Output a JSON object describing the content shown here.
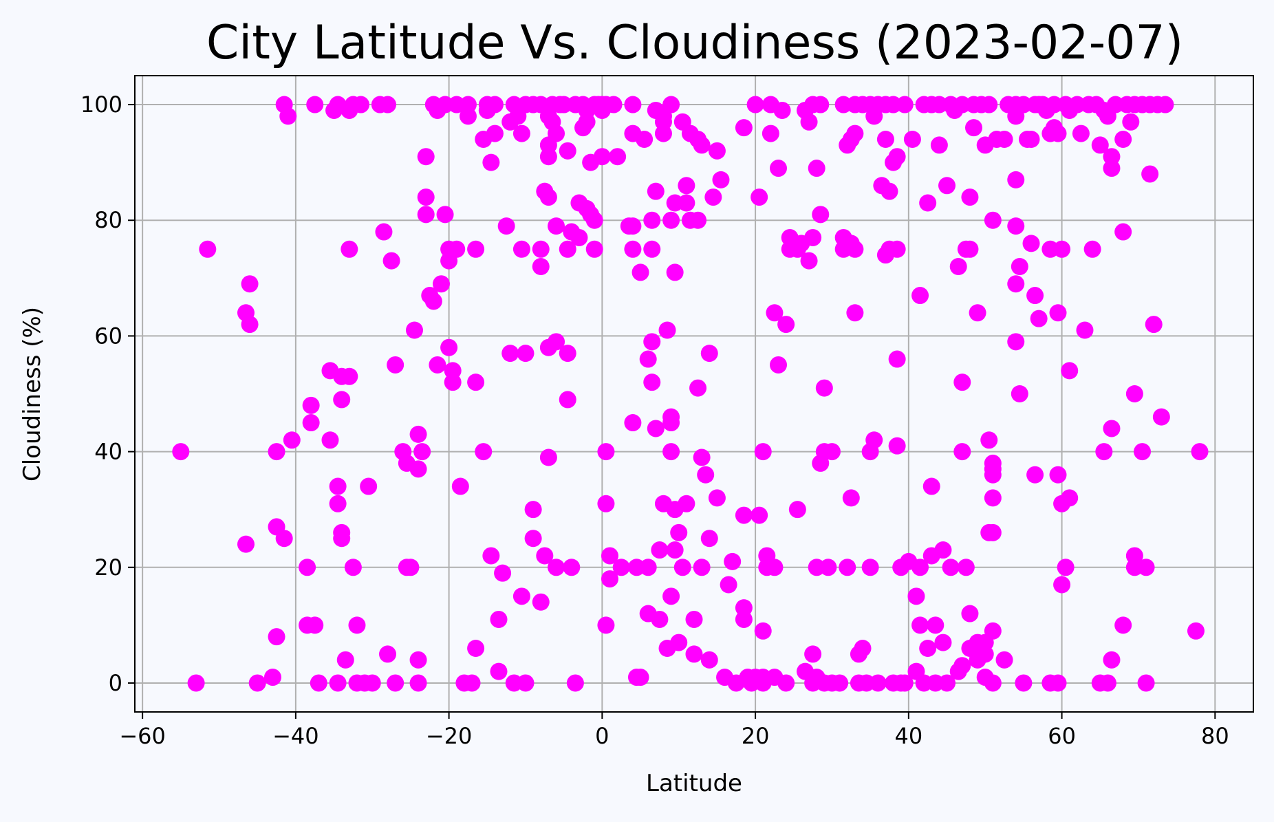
{
  "chart_data": {
    "type": "scatter",
    "title": "City Latitude Vs. Cloudiness (2023-02-07)",
    "xlabel": "Latitude",
    "ylabel": "Cloudiness (%)",
    "xlim": [
      -61,
      85
    ],
    "ylim": [
      -5,
      105
    ],
    "xticks": [
      -60,
      -40,
      -20,
      0,
      20,
      40,
      60,
      80
    ],
    "yticks": [
      0,
      20,
      40,
      60,
      80,
      100
    ],
    "grid": true,
    "marker_color": "#ff00ff",
    "points": [
      [
        -55,
        40
      ],
      [
        -53,
        0
      ],
      [
        -51.5,
        75
      ],
      [
        -46.5,
        64
      ],
      [
        -46,
        62
      ],
      [
        -46,
        69
      ],
      [
        -46.5,
        24
      ],
      [
        -45,
        0
      ],
      [
        -43,
        1
      ],
      [
        -42.5,
        40
      ],
      [
        -42.5,
        8
      ],
      [
        -42.5,
        27
      ],
      [
        -41.5,
        100
      ],
      [
        -41,
        98
      ],
      [
        -41.5,
        25
      ],
      [
        -40.5,
        42
      ],
      [
        -38.5,
        20
      ],
      [
        -38.5,
        10
      ],
      [
        -38,
        48
      ],
      [
        -38,
        45
      ],
      [
        -37.5,
        100
      ],
      [
        -37.5,
        10
      ],
      [
        -37,
        0
      ],
      [
        -35.5,
        54
      ],
      [
        -35.5,
        42
      ],
      [
        -35,
        99
      ],
      [
        -34.5,
        100
      ],
      [
        -34.5,
        0
      ],
      [
        -34.5,
        34
      ],
      [
        -34.5,
        31
      ],
      [
        -34,
        53
      ],
      [
        -34,
        49
      ],
      [
        -34,
        26
      ],
      [
        -34,
        25
      ],
      [
        -33.5,
        4
      ],
      [
        -33,
        53
      ],
      [
        -33,
        75
      ],
      [
        -33,
        99
      ],
      [
        -32.5,
        100
      ],
      [
        -32.5,
        20
      ],
      [
        -32,
        10
      ],
      [
        -32,
        0
      ],
      [
        -31.5,
        100
      ],
      [
        -31,
        0
      ],
      [
        -30,
        0
      ],
      [
        -30.5,
        34
      ],
      [
        -29,
        100
      ],
      [
        -28.5,
        78
      ],
      [
        -28,
        5
      ],
      [
        -28,
        100
      ],
      [
        -27.5,
        73
      ],
      [
        -27,
        55
      ],
      [
        -27,
        0
      ],
      [
        -26,
        40
      ],
      [
        -25.5,
        38
      ],
      [
        -25.5,
        20
      ],
      [
        -25,
        20
      ],
      [
        -24.5,
        61
      ],
      [
        -24,
        43
      ],
      [
        -24,
        37
      ],
      [
        -24,
        0
      ],
      [
        -24,
        4
      ],
      [
        -23.5,
        40
      ],
      [
        -23,
        91
      ],
      [
        -23,
        84
      ],
      [
        -23,
        81
      ],
      [
        -22.5,
        67
      ],
      [
        -22,
        66
      ],
      [
        -22,
        100
      ],
      [
        -21.5,
        99
      ],
      [
        -21.5,
        55
      ],
      [
        -21,
        69
      ],
      [
        -20.5,
        100
      ],
      [
        -20.5,
        81
      ],
      [
        -20,
        73
      ],
      [
        -20,
        75
      ],
      [
        -20,
        58
      ],
      [
        -19.5,
        54
      ],
      [
        -19.5,
        52
      ],
      [
        -19,
        100
      ],
      [
        -19,
        75
      ],
      [
        -18.5,
        34
      ],
      [
        -18,
        0
      ],
      [
        -17.5,
        100
      ],
      [
        -17.5,
        98
      ],
      [
        -17,
        0
      ],
      [
        -16.5,
        75
      ],
      [
        -16.5,
        52
      ],
      [
        -16.5,
        6
      ],
      [
        -15.5,
        40
      ],
      [
        -15.5,
        94
      ],
      [
        -15,
        100
      ],
      [
        -15,
        99
      ],
      [
        -14.5,
        90
      ],
      [
        -14.5,
        22
      ],
      [
        -14,
        100
      ],
      [
        -14,
        95
      ],
      [
        -13.5,
        11
      ],
      [
        -13.5,
        2
      ],
      [
        -13,
        19
      ],
      [
        -12.5,
        79
      ],
      [
        -12,
        97
      ],
      [
        -12,
        57
      ],
      [
        -11.5,
        0
      ],
      [
        -11.5,
        100
      ],
      [
        -11,
        98
      ],
      [
        -10.5,
        95
      ],
      [
        -10.5,
        75
      ],
      [
        -10.5,
        15
      ],
      [
        -10,
        57
      ],
      [
        -10,
        0
      ],
      [
        -10,
        100
      ],
      [
        -9,
        100
      ],
      [
        -9,
        25
      ],
      [
        -9,
        30
      ],
      [
        -8,
        100
      ],
      [
        -8,
        75
      ],
      [
        -8,
        72
      ],
      [
        -8,
        14
      ],
      [
        -7.5,
        22
      ],
      [
        -7.5,
        85
      ],
      [
        -7,
        98
      ],
      [
        -7,
        93
      ],
      [
        -7,
        91
      ],
      [
        -7,
        84
      ],
      [
        -7,
        58
      ],
      [
        -7,
        39
      ],
      [
        -6.5,
        100
      ],
      [
        -6.5,
        97
      ],
      [
        -6,
        95
      ],
      [
        -6,
        79
      ],
      [
        -6,
        59
      ],
      [
        -6,
        20
      ],
      [
        -5.5,
        100
      ],
      [
        -5,
        100
      ],
      [
        -4.5,
        92
      ],
      [
        -4.5,
        75
      ],
      [
        -4.5,
        57
      ],
      [
        -4.5,
        49
      ],
      [
        -4,
        78
      ],
      [
        -4,
        20
      ],
      [
        -3.5,
        100
      ],
      [
        -3.5,
        0
      ],
      [
        -3,
        83
      ],
      [
        -3,
        77
      ],
      [
        -2.5,
        100
      ],
      [
        -2.5,
        96
      ],
      [
        -2,
        99
      ],
      [
        -2,
        97
      ],
      [
        -2,
        82
      ],
      [
        -1.5,
        90
      ],
      [
        -1.5,
        81
      ],
      [
        -1,
        100
      ],
      [
        -1,
        75
      ],
      [
        -1,
        80
      ],
      [
        -0.5,
        100
      ],
      [
        0,
        100
      ],
      [
        0,
        99
      ],
      [
        0,
        91
      ],
      [
        0.5,
        100
      ],
      [
        0.5,
        10
      ],
      [
        0.5,
        40
      ],
      [
        0.5,
        31
      ],
      [
        1,
        22
      ],
      [
        1,
        18
      ],
      [
        1.5,
        100
      ],
      [
        2,
        91
      ],
      [
        2.5,
        20
      ],
      [
        3.5,
        79
      ],
      [
        4,
        79
      ],
      [
        4,
        75
      ],
      [
        4,
        45
      ],
      [
        4,
        95
      ],
      [
        4,
        100
      ],
      [
        4.5,
        20
      ],
      [
        4.5,
        1
      ],
      [
        5,
        1
      ],
      [
        5,
        71
      ],
      [
        5.5,
        94
      ],
      [
        6,
        20
      ],
      [
        6,
        12
      ],
      [
        6,
        56
      ],
      [
        6.5,
        59
      ],
      [
        6.5,
        52
      ],
      [
        6.5,
        75
      ],
      [
        6.5,
        80
      ],
      [
        7,
        85
      ],
      [
        7,
        44
      ],
      [
        7,
        99
      ],
      [
        7.5,
        23
      ],
      [
        7.5,
        11
      ],
      [
        8,
        31
      ],
      [
        8,
        97
      ],
      [
        8,
        95
      ],
      [
        8,
        98
      ],
      [
        8.5,
        6
      ],
      [
        8.5,
        61
      ],
      [
        9,
        15
      ],
      [
        9,
        40
      ],
      [
        9,
        45
      ],
      [
        9,
        46
      ],
      [
        9,
        80
      ],
      [
        9,
        100
      ],
      [
        9.5,
        71
      ],
      [
        9.5,
        83
      ],
      [
        9.5,
        30
      ],
      [
        9.5,
        23
      ],
      [
        10,
        7
      ],
      [
        10,
        26
      ],
      [
        10.5,
        97
      ],
      [
        10.5,
        20
      ],
      [
        11,
        31
      ],
      [
        11,
        86
      ],
      [
        11,
        83
      ],
      [
        11.5,
        95
      ],
      [
        11.5,
        80
      ],
      [
        12,
        5
      ],
      [
        12,
        11
      ],
      [
        12.5,
        94
      ],
      [
        12.5,
        80
      ],
      [
        12.5,
        51
      ],
      [
        13,
        93
      ],
      [
        13,
        39
      ],
      [
        13,
        20
      ],
      [
        13.5,
        36
      ],
      [
        14,
        57
      ],
      [
        14,
        25
      ],
      [
        14,
        4
      ],
      [
        14.5,
        84
      ],
      [
        15,
        92
      ],
      [
        15,
        32
      ],
      [
        15.5,
        87
      ],
      [
        16,
        1
      ],
      [
        16.5,
        17
      ],
      [
        17,
        21
      ],
      [
        17.5,
        0
      ],
      [
        18.5,
        29
      ],
      [
        18.5,
        13
      ],
      [
        18.5,
        11
      ],
      [
        18.5,
        96
      ],
      [
        19,
        1
      ],
      [
        19.5,
        0
      ],
      [
        20,
        1
      ],
      [
        20,
        100
      ],
      [
        20.5,
        84
      ],
      [
        20.5,
        29
      ],
      [
        21,
        40
      ],
      [
        21,
        9
      ],
      [
        21,
        1
      ],
      [
        21,
        0
      ],
      [
        21.5,
        22
      ],
      [
        21.5,
        20
      ],
      [
        22,
        100
      ],
      [
        22,
        95
      ],
      [
        22.5,
        64
      ],
      [
        22.5,
        20
      ],
      [
        22.5,
        1
      ],
      [
        23,
        89
      ],
      [
        23,
        55
      ],
      [
        23.5,
        99
      ],
      [
        24,
        62
      ],
      [
        24,
        0
      ],
      [
        24.5,
        75
      ],
      [
        24.5,
        77
      ],
      [
        25.5,
        30
      ],
      [
        25.5,
        75
      ],
      [
        26,
        76
      ],
      [
        26.5,
        2
      ],
      [
        26.5,
        99
      ],
      [
        27,
        73
      ],
      [
        27,
        97
      ],
      [
        27.5,
        77
      ],
      [
        27.5,
        100
      ],
      [
        27.5,
        5
      ],
      [
        27.5,
        0
      ],
      [
        28,
        89
      ],
      [
        28,
        20
      ],
      [
        28,
        1
      ],
      [
        28.5,
        81
      ],
      [
        28.5,
        38
      ],
      [
        28.5,
        100
      ],
      [
        29,
        40
      ],
      [
        29,
        51
      ],
      [
        29,
        0
      ],
      [
        29.5,
        20
      ],
      [
        30,
        40
      ],
      [
        30,
        0
      ],
      [
        31,
        0
      ],
      [
        31.5,
        100
      ],
      [
        31.5,
        77
      ],
      [
        31.5,
        75
      ],
      [
        32,
        20
      ],
      [
        32,
        93
      ],
      [
        32.5,
        76
      ],
      [
        32.5,
        94
      ],
      [
        32.5,
        32
      ],
      [
        33,
        95
      ],
      [
        33,
        100
      ],
      [
        33,
        75
      ],
      [
        33,
        64
      ],
      [
        33.5,
        5
      ],
      [
        33.5,
        0
      ],
      [
        34,
        6
      ],
      [
        34,
        100
      ],
      [
        34.5,
        0
      ],
      [
        35,
        20
      ],
      [
        35,
        100
      ],
      [
        35,
        40
      ],
      [
        35.5,
        42
      ],
      [
        35.5,
        98
      ],
      [
        36,
        100
      ],
      [
        36,
        0
      ],
      [
        36.5,
        86
      ],
      [
        37,
        100
      ],
      [
        37,
        74
      ],
      [
        37,
        94
      ],
      [
        37.5,
        75
      ],
      [
        37.5,
        85
      ],
      [
        38,
        90
      ],
      [
        38,
        100
      ],
      [
        38,
        0
      ],
      [
        38.5,
        91
      ],
      [
        38.5,
        56
      ],
      [
        38.5,
        75
      ],
      [
        38.5,
        41
      ],
      [
        39,
        0
      ],
      [
        39,
        20
      ],
      [
        39.5,
        100
      ],
      [
        39.5,
        0
      ],
      [
        40,
        21
      ],
      [
        40.5,
        94
      ],
      [
        41,
        15
      ],
      [
        41,
        2
      ],
      [
        41.5,
        67
      ],
      [
        41.5,
        20
      ],
      [
        41.5,
        10
      ],
      [
        42,
        100
      ],
      [
        42,
        0
      ],
      [
        42.5,
        83
      ],
      [
        42.5,
        6
      ],
      [
        43,
        22
      ],
      [
        43,
        100
      ],
      [
        43,
        34
      ],
      [
        43.5,
        0
      ],
      [
        43.5,
        10
      ],
      [
        44,
        93
      ],
      [
        44,
        100
      ],
      [
        44.5,
        23
      ],
      [
        44.5,
        7
      ],
      [
        45,
        86
      ],
      [
        45,
        0
      ],
      [
        45.5,
        100
      ],
      [
        45.5,
        20
      ],
      [
        46,
        99
      ],
      [
        46.5,
        2
      ],
      [
        46.5,
        72
      ],
      [
        47,
        52
      ],
      [
        47,
        100
      ],
      [
        47,
        40
      ],
      [
        47,
        3
      ],
      [
        47.5,
        20
      ],
      [
        47.5,
        75
      ],
      [
        48,
        84
      ],
      [
        48,
        75
      ],
      [
        48,
        12
      ],
      [
        48,
        6
      ],
      [
        48.5,
        96
      ],
      [
        48.5,
        100
      ],
      [
        49,
        64
      ],
      [
        49,
        4
      ],
      [
        49,
        7
      ],
      [
        49.5,
        100
      ],
      [
        49.5,
        6
      ],
      [
        50,
        93
      ],
      [
        50,
        5
      ],
      [
        50,
        1
      ],
      [
        50,
        7
      ],
      [
        50.5,
        26
      ],
      [
        50.5,
        42
      ],
      [
        50.5,
        100
      ],
      [
        51,
        32
      ],
      [
        51,
        38
      ],
      [
        51,
        37
      ],
      [
        51,
        26
      ],
      [
        51,
        9
      ],
      [
        51,
        36
      ],
      [
        51,
        80
      ],
      [
        51,
        0
      ],
      [
        51.5,
        94
      ],
      [
        52.5,
        94
      ],
      [
        52.5,
        4
      ],
      [
        53,
        100
      ],
      [
        54,
        100
      ],
      [
        54,
        98
      ],
      [
        54,
        87
      ],
      [
        54,
        79
      ],
      [
        54,
        69
      ],
      [
        54,
        59
      ],
      [
        54.5,
        72
      ],
      [
        54.5,
        50
      ],
      [
        55,
        100
      ],
      [
        55,
        0
      ],
      [
        55.5,
        94
      ],
      [
        56,
        94
      ],
      [
        56,
        76
      ],
      [
        56.5,
        100
      ],
      [
        56.5,
        67
      ],
      [
        56.5,
        36
      ],
      [
        57,
        63
      ],
      [
        57,
        100
      ],
      [
        57.5,
        100
      ],
      [
        58,
        99
      ],
      [
        58.5,
        95
      ],
      [
        58.5,
        75
      ],
      [
        58.5,
        0
      ],
      [
        59,
        100
      ],
      [
        59,
        96
      ],
      [
        59.5,
        95
      ],
      [
        59.5,
        64
      ],
      [
        59.5,
        36
      ],
      [
        59.5,
        0
      ],
      [
        60,
        75
      ],
      [
        60,
        31
      ],
      [
        60,
        17
      ],
      [
        60.5,
        100
      ],
      [
        60.5,
        20
      ],
      [
        61,
        99
      ],
      [
        61,
        54
      ],
      [
        61,
        32
      ],
      [
        62,
        100
      ],
      [
        62.5,
        95
      ],
      [
        63,
        61
      ],
      [
        63.5,
        100
      ],
      [
        64,
        75
      ],
      [
        64.5,
        100
      ],
      [
        65,
        93
      ],
      [
        65,
        0
      ],
      [
        65.5,
        99
      ],
      [
        65.5,
        40
      ],
      [
        66,
        98
      ],
      [
        66,
        0
      ],
      [
        66.5,
        91
      ],
      [
        66.5,
        89
      ],
      [
        66.5,
        44
      ],
      [
        66.5,
        4
      ],
      [
        67,
        100
      ],
      [
        68,
        94
      ],
      [
        68,
        78
      ],
      [
        68,
        10
      ],
      [
        68.5,
        100
      ],
      [
        69,
        97
      ],
      [
        69.5,
        100
      ],
      [
        69.5,
        50
      ],
      [
        69.5,
        22
      ],
      [
        69.5,
        20
      ],
      [
        70.5,
        100
      ],
      [
        70.5,
        40
      ],
      [
        71,
        20
      ],
      [
        71,
        0
      ],
      [
        71.5,
        100
      ],
      [
        71.5,
        88
      ],
      [
        72,
        62
      ],
      [
        72.5,
        100
      ],
      [
        73,
        46
      ],
      [
        73.5,
        100
      ],
      [
        77.5,
        9
      ],
      [
        78,
        40
      ]
    ]
  }
}
